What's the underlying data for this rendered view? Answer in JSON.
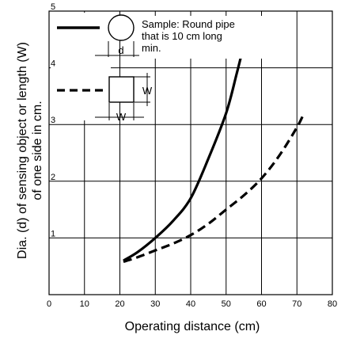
{
  "chart_data": {
    "type": "line",
    "xlabel": "Operating distance (cm)",
    "ylabel_line1": "Dia. (d) of sensing object or length (W)",
    "ylabel_line2": "of one side in cm.",
    "xlim": [
      0,
      80
    ],
    "ylim": [
      0,
      5
    ],
    "x_ticks": [
      "0",
      "10",
      "20",
      "30",
      "40",
      "50",
      "60",
      "70",
      "80"
    ],
    "y_ticks": [
      "1",
      "2",
      "3",
      "4",
      "5"
    ],
    "grid": true,
    "legend": {
      "placement": "top-left",
      "sample_note": [
        "Sample: Round pipe",
        "that is 10 cm long",
        "min."
      ],
      "round_dim_label": "d",
      "square_dim_label_side": "W",
      "square_dim_label_bottom": "W"
    },
    "series": [
      {
        "style": "solid",
        "x": [
          21,
          25,
          30,
          35,
          40,
          45,
          50,
          53,
          55
        ],
        "y": [
          0.6,
          0.75,
          1.0,
          1.3,
          1.7,
          2.4,
          3.2,
          3.9,
          4.4
        ]
      },
      {
        "style": "dashed",
        "x": [
          21,
          25,
          30,
          35,
          40,
          45,
          50,
          55,
          60,
          65,
          70,
          72
        ],
        "y": [
          0.58,
          0.66,
          0.78,
          0.9,
          1.05,
          1.25,
          1.5,
          1.75,
          2.05,
          2.45,
          2.95,
          3.2
        ]
      }
    ]
  }
}
